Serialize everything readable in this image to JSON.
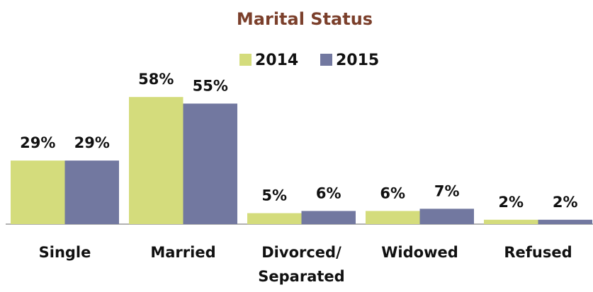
{
  "chart_data": {
    "type": "bar",
    "title": "Marital Status",
    "categories": [
      "Single",
      "Married",
      "Divorced/ Separated",
      "Widowed",
      "Refused"
    ],
    "series": [
      {
        "name": "2014",
        "color": "#d4dc7c",
        "values": [
          29,
          58,
          5,
          6,
          2
        ],
        "value_labels": [
          "29%",
          "58%",
          "5%",
          "6%",
          "2%"
        ]
      },
      {
        "name": "2015",
        "color": "#7278a0",
        "values": [
          29,
          55,
          6,
          7,
          2
        ],
        "value_labels": [
          "29%",
          "55%",
          "6%",
          "7%",
          "2%"
        ]
      }
    ],
    "ylim": [
      0,
      60
    ]
  }
}
